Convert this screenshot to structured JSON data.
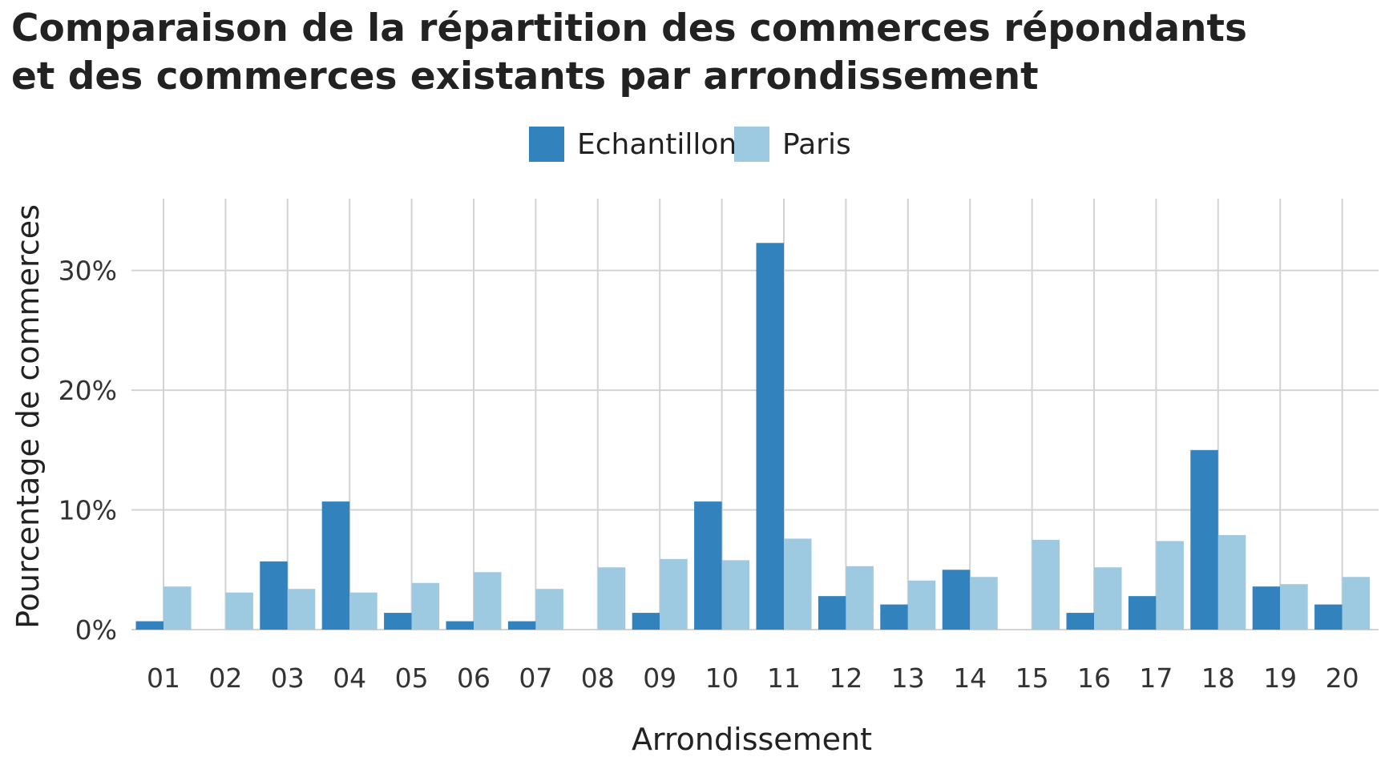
{
  "chart_data": {
    "type": "bar",
    "title": "Comparaison de la répartition des commerces répondants et des commerces existants par arrondissement",
    "title_lines": [
      "Comparaison de la répartition des commerces répondants",
      "et des commerces existants par arrondissement"
    ],
    "xlabel": "Arrondissement",
    "ylabel": "Pourcentage de commerces",
    "categories": [
      "01",
      "02",
      "03",
      "04",
      "05",
      "06",
      "07",
      "08",
      "09",
      "10",
      "11",
      "12",
      "13",
      "14",
      "15",
      "16",
      "17",
      "18",
      "19",
      "20"
    ],
    "series": [
      {
        "name": "Echantillon",
        "color": "#3182bd",
        "values": [
          0.7,
          0,
          5.7,
          10.7,
          1.4,
          0.7,
          0.7,
          0,
          1.4,
          10.7,
          32.3,
          2.8,
          2.1,
          5.0,
          0,
          1.4,
          2.8,
          15.0,
          3.6,
          2.1
        ]
      },
      {
        "name": "Paris",
        "color": "#9ecae1",
        "values": [
          3.6,
          3.1,
          3.4,
          3.1,
          3.9,
          4.8,
          3.4,
          5.2,
          5.9,
          5.8,
          7.6,
          5.3,
          4.1,
          4.4,
          7.5,
          5.2,
          7.4,
          7.9,
          3.8,
          4.4
        ]
      }
    ],
    "ylim": [
      0,
      36
    ],
    "y_ticks": [
      0,
      10,
      20,
      30
    ],
    "y_tick_labels": [
      "0%",
      "10%",
      "20%",
      "30%"
    ],
    "legend_position": "top",
    "grid": true,
    "grid_color": "#d3d3d3"
  }
}
